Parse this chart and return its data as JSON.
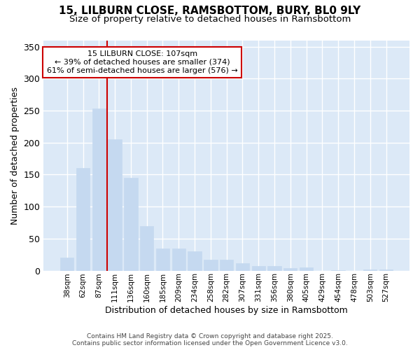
{
  "title_line1": "15, LILBURN CLOSE, RAMSBOTTOM, BURY, BL0 9LY",
  "title_line2": "Size of property relative to detached houses in Ramsbottom",
  "categories": [
    "38sqm",
    "62sqm",
    "87sqm",
    "111sqm",
    "136sqm",
    "160sqm",
    "185sqm",
    "209sqm",
    "234sqm",
    "258sqm",
    "282sqm",
    "307sqm",
    "331sqm",
    "356sqm",
    "380sqm",
    "405sqm",
    "429sqm",
    "454sqm",
    "478sqm",
    "503sqm",
    "527sqm"
  ],
  "values": [
    20,
    160,
    253,
    205,
    145,
    69,
    34,
    34,
    30,
    17,
    17,
    11,
    7,
    7,
    4,
    5,
    0,
    1,
    0,
    2,
    2
  ],
  "bar_color": "#c5d9f0",
  "bar_edgecolor": "#c5d9f0",
  "xlabel": "Distribution of detached houses by size in Ramsbottom",
  "ylabel": "Number of detached properties",
  "ylim": [
    0,
    360
  ],
  "yticks": [
    0,
    50,
    100,
    150,
    200,
    250,
    300,
    350
  ],
  "property_label": "15 LILBURN CLOSE: 107sqm",
  "annotation_line1": "← 39% of detached houses are smaller (374)",
  "annotation_line2": "61% of semi-detached houses are larger (576) →",
  "vline_x_index": 3.0,
  "bg_color": "#ffffff",
  "plot_bg_color": "#dce9f7",
  "grid_color": "#ffffff",
  "annotation_box_facecolor": "#ffffff",
  "annotation_box_edgecolor": "#cc0000",
  "footer_line1": "Contains HM Land Registry data © Crown copyright and database right 2025.",
  "footer_line2": "Contains public sector information licensed under the Open Government Licence v3.0."
}
